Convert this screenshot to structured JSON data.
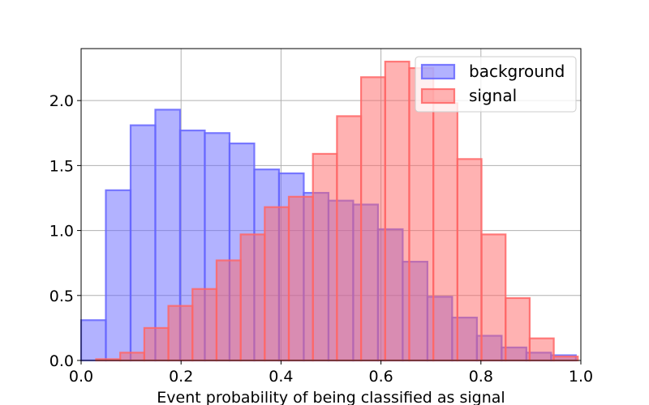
{
  "chart_data": {
    "type": "bar",
    "title": "",
    "xlabel": "Event probability of being classified as signal",
    "ylabel": "",
    "xlim": [
      0.0,
      1.0
    ],
    "ylim": [
      0.0,
      2.4
    ],
    "xticks": [
      "0.0",
      "0.2",
      "0.4",
      "0.6",
      "0.8",
      "1.0"
    ],
    "yticks": [
      "0.0",
      "0.5",
      "1.0",
      "1.5",
      "2.0"
    ],
    "grid": true,
    "legend_position": "top-right",
    "series": [
      {
        "name": "background",
        "color": "#6666ff",
        "bin_start": 0.0,
        "bin_width": 0.0495,
        "values": [
          0.31,
          1.31,
          1.81,
          1.93,
          1.77,
          1.75,
          1.67,
          1.47,
          1.44,
          1.29,
          1.23,
          1.2,
          1.01,
          0.76,
          0.49,
          0.33,
          0.19,
          0.1,
          0.06,
          0.04
        ]
      },
      {
        "name": "signal",
        "color": "#ff6666",
        "bin_start": 0.03,
        "bin_width": 0.0482,
        "values": [
          0.01,
          0.06,
          0.25,
          0.42,
          0.55,
          0.77,
          0.97,
          1.18,
          1.26,
          1.59,
          1.88,
          2.18,
          2.3,
          2.25,
          1.98,
          1.55,
          0.97,
          0.48,
          0.17,
          0.03
        ]
      }
    ]
  }
}
